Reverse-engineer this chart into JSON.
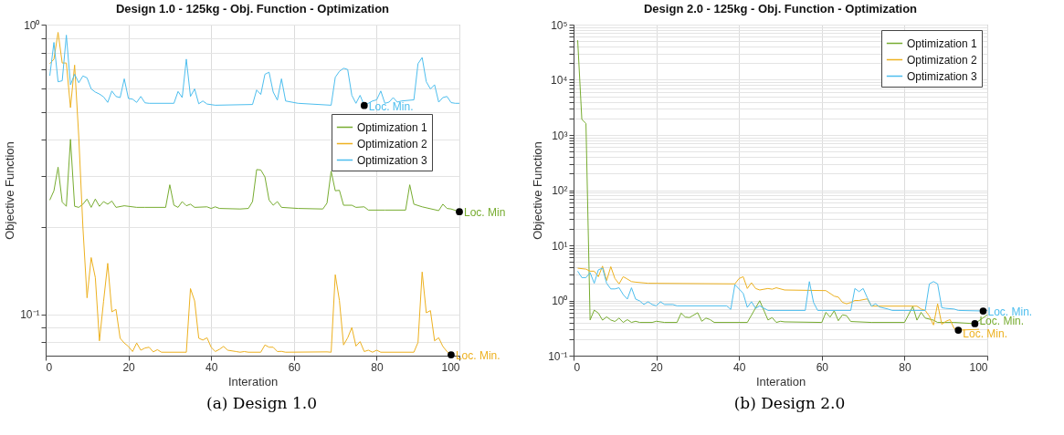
{
  "chart_data": [
    {
      "type": "line",
      "title": "Design 1.0 - 125kg - Obj. Function - Optimization",
      "xlabel": "Interation",
      "ylabel": "Objective Function",
      "xlim": [
        0,
        100
      ],
      "xticks": [
        0,
        20,
        40,
        60,
        80,
        100
      ],
      "ylim": [
        0.072,
        1
      ],
      "log": true,
      "yticks": [
        {
          "value": 0.08,
          "label": null
        },
        {
          "value": 0.09,
          "label": null
        },
        {
          "value": 0.1,
          "label": "10⁻¹"
        },
        {
          "value": 0.2,
          "label": null
        },
        {
          "value": 0.3,
          "label": null
        },
        {
          "value": 0.4,
          "label": null
        },
        {
          "value": 0.5,
          "label": null
        },
        {
          "value": 0.6,
          "label": null
        },
        {
          "value": 0.7,
          "label": null
        },
        {
          "value": 0.8,
          "label": null
        },
        {
          "value": 0.9,
          "label": null
        },
        {
          "value": 1,
          "label": "10⁰"
        }
      ],
      "grid": true,
      "legend": "right",
      "series": [
        {
          "name": "Optimization 1",
          "color": "#77ac30",
          "x": [
            1,
            2,
            3,
            4,
            5,
            6,
            7,
            8,
            9,
            10,
            11,
            12,
            13,
            14,
            15,
            16,
            17,
            19,
            22,
            24,
            29,
            30,
            31,
            32,
            33,
            34,
            35,
            36,
            39,
            40,
            41,
            42,
            47,
            49,
            50,
            51,
            52,
            53,
            54,
            55,
            56,
            57,
            61,
            67,
            68,
            69,
            70,
            71,
            72,
            74,
            75,
            77,
            78,
            82,
            87,
            88,
            89,
            91,
            95,
            96,
            97,
            98,
            100
          ],
          "values": [
            0.248,
            0.267,
            0.322,
            0.244,
            0.236,
            0.402,
            0.236,
            0.234,
            0.24,
            0.25,
            0.234,
            0.25,
            0.236,
            0.245,
            0.24,
            0.246,
            0.234,
            0.237,
            0.234,
            0.234,
            0.234,
            0.28,
            0.238,
            0.234,
            0.245,
            0.237,
            0.24,
            0.234,
            0.235,
            0.232,
            0.235,
            0.232,
            0.231,
            0.232,
            0.245,
            0.316,
            0.315,
            0.298,
            0.248,
            0.238,
            0.245,
            0.234,
            0.232,
            0.231,
            0.242,
            0.312,
            0.267,
            0.268,
            0.238,
            0.238,
            0.234,
            0.235,
            0.229,
            0.229,
            0.229,
            0.28,
            0.24,
            0.235,
            0.228,
            0.24,
            0.232,
            0.231,
            0.226
          ]
        },
        {
          "name": "Optimization 2",
          "color": "#edb120",
          "x": [
            1,
            2,
            3,
            4,
            5,
            6,
            7,
            8,
            9,
            10,
            11,
            12,
            13,
            14,
            15,
            16,
            17,
            18,
            19,
            20,
            21,
            22,
            23,
            24,
            25,
            26,
            27,
            28,
            34,
            35,
            36,
            37,
            38,
            39,
            40,
            41,
            42,
            43,
            44,
            46,
            47,
            48,
            49,
            52,
            53,
            54,
            55,
            56,
            57,
            58,
            68,
            69,
            70,
            71,
            72,
            73,
            74,
            75,
            76,
            77,
            78,
            79,
            80,
            81,
            89,
            90,
            91,
            92,
            93,
            94,
            95,
            96,
            97,
            98
          ],
          "values": [
            0.733,
            0.76,
            0.94,
            0.737,
            0.737,
            0.517,
            0.725,
            0.41,
            0.2,
            0.114,
            0.157,
            0.134,
            0.081,
            0.111,
            0.15,
            0.102,
            0.104,
            0.0827,
            0.0796,
            0.0775,
            0.0744,
            0.0796,
            0.0752,
            0.0765,
            0.077,
            0.0742,
            0.0755,
            0.074,
            0.074,
            0.1227,
            0.1113,
            0.0827,
            0.0815,
            0.083,
            0.077,
            0.0744,
            0.0757,
            0.0775,
            0.0752,
            0.0744,
            0.074,
            0.0744,
            0.074,
            0.074,
            0.0784,
            0.077,
            0.077,
            0.0744,
            0.0745,
            0.074,
            0.0742,
            0.074,
            0.137,
            0.1116,
            0.0784,
            0.083,
            0.09,
            0.0777,
            0.0805,
            0.0744,
            0.0752,
            0.074,
            0.0752,
            0.074,
            0.074,
            0.08,
            0.14,
            0.1012,
            0.103,
            0.081,
            0.083,
            0.0775,
            0.0744,
            0.0725
          ]
        },
        {
          "name": "Optimization 3",
          "color": "#4dbeee",
          "x": [
            1,
            2,
            3,
            4,
            5,
            6,
            7,
            8,
            9,
            10,
            11,
            12,
            13,
            14,
            15,
            16,
            17,
            18,
            19,
            20,
            21,
            22,
            23,
            24,
            25,
            31,
            32,
            33,
            34,
            35,
            36,
            37,
            38,
            39,
            41,
            50,
            51,
            52,
            53,
            54,
            55,
            56,
            57,
            58,
            61,
            69,
            70,
            71,
            72,
            73,
            74,
            75,
            76,
            77,
            78,
            79,
            80,
            81,
            82,
            83,
            84,
            85,
            86,
            89,
            90,
            91,
            92,
            93,
            94,
            95,
            96,
            97,
            98,
            99,
            100
          ],
          "values": [
            0.666,
            0.868,
            0.635,
            0.64,
            0.92,
            0.62,
            0.674,
            0.63,
            0.665,
            0.655,
            0.6,
            0.585,
            0.576,
            0.563,
            0.539,
            0.59,
            0.565,
            0.56,
            0.65,
            0.556,
            0.553,
            0.539,
            0.565,
            0.537,
            0.535,
            0.535,
            0.588,
            0.56,
            0.76,
            0.565,
            0.6,
            0.533,
            0.545,
            0.532,
            0.527,
            0.53,
            0.595,
            0.574,
            0.674,
            0.685,
            0.585,
            0.549,
            0.65,
            0.545,
            0.535,
            0.527,
            0.658,
            0.69,
            0.707,
            0.7,
            0.57,
            0.535,
            0.57,
            0.526,
            0.535,
            0.545,
            0.55,
            0.59,
            0.535,
            0.54,
            0.56,
            0.54,
            0.545,
            0.55,
            0.733,
            0.77,
            0.635,
            0.6,
            0.62,
            0.54,
            0.56,
            0.565,
            0.538,
            0.535,
            0.535
          ]
        }
      ],
      "annotations": [
        {
          "text": "Loc. Min.",
          "x": 77,
          "y": 0.526
        },
        {
          "text": "Loc. Min",
          "x": 100,
          "y": 0.226
        },
        {
          "text": "Loc. Min.",
          "x": 98,
          "y": 0.0725
        },
        "(a) Design 1.0"
      ]
    },
    {
      "type": "line",
      "title": "Design 2.0 - 125kg - Obj. Function - Optimization",
      "xlabel": "Interation",
      "ylabel": "Objective Function",
      "xlim": [
        0,
        100
      ],
      "xticks": [
        0,
        20,
        40,
        60,
        80,
        100
      ],
      "ylim": [
        0.1,
        100000
      ],
      "log": true,
      "yticks": [
        {
          "value": 0.1,
          "label": "10⁻¹"
        },
        {
          "value": 0.2,
          "label": null
        },
        {
          "value": 0.3,
          "label": null
        },
        {
          "value": 0.4,
          "label": null
        },
        {
          "value": 0.5,
          "label": null
        },
        {
          "value": 0.6,
          "label": null
        },
        {
          "value": 0.7,
          "label": null
        },
        {
          "value": 0.8,
          "label": null
        },
        {
          "value": 0.9,
          "label": null
        },
        {
          "value": 1,
          "label": "10⁰"
        },
        {
          "value": 2,
          "label": null
        },
        {
          "value": 3,
          "label": null
        },
        {
          "value": 4,
          "label": null
        },
        {
          "value": 5,
          "label": null
        },
        {
          "value": 6,
          "label": null
        },
        {
          "value": 7,
          "label": null
        },
        {
          "value": 8,
          "label": null
        },
        {
          "value": 9,
          "label": null
        },
        {
          "value": 10,
          "label": "10¹"
        },
        {
          "value": 20,
          "label": null
        },
        {
          "value": 30,
          "label": null
        },
        {
          "value": 40,
          "label": null
        },
        {
          "value": 50,
          "label": null
        },
        {
          "value": 60,
          "label": null
        },
        {
          "value": 70,
          "label": null
        },
        {
          "value": 80,
          "label": null
        },
        {
          "value": 90,
          "label": null
        },
        {
          "value": 100,
          "label": "10²"
        },
        {
          "value": 200,
          "label": null
        },
        {
          "value": 300,
          "label": null
        },
        {
          "value": 400,
          "label": null
        },
        {
          "value": 500,
          "label": null
        },
        {
          "value": 600,
          "label": null
        },
        {
          "value": 700,
          "label": null
        },
        {
          "value": 800,
          "label": null
        },
        {
          "value": 900,
          "label": null
        },
        {
          "value": 1000,
          "label": "10³"
        },
        {
          "value": 2000,
          "label": null
        },
        {
          "value": 3000,
          "label": null
        },
        {
          "value": 4000,
          "label": null
        },
        {
          "value": 5000,
          "label": null
        },
        {
          "value": 6000,
          "label": null
        },
        {
          "value": 7000,
          "label": null
        },
        {
          "value": 8000,
          "label": null
        },
        {
          "value": 9000,
          "label": null
        },
        {
          "value": 10000,
          "label": "10⁴"
        },
        {
          "value": 20000,
          "label": null
        },
        {
          "value": 30000,
          "label": null
        },
        {
          "value": 40000,
          "label": null
        },
        {
          "value": 50000,
          "label": null
        },
        {
          "value": 60000,
          "label": null
        },
        {
          "value": 70000,
          "label": null
        },
        {
          "value": 80000,
          "label": null
        },
        {
          "value": 90000,
          "label": null
        },
        {
          "value": 100000,
          "label": "10⁵"
        }
      ],
      "grid": true,
      "legend": "top right",
      "series": [
        {
          "name": "Optimization 1",
          "color": "#77ac30",
          "x": [
            1,
            2,
            3,
            4,
            5,
            6,
            7,
            8,
            9,
            10,
            11,
            12,
            13,
            14,
            15,
            16,
            19,
            20,
            22,
            25,
            26,
            27,
            28,
            30,
            31,
            32,
            33,
            34,
            42,
            45,
            47,
            48,
            49,
            50,
            51,
            60,
            61,
            62,
            63,
            64,
            65,
            66,
            67,
            72,
            80,
            82,
            83,
            84,
            85,
            87,
            88,
            92,
            97,
            100
          ],
          "values": [
            52000,
            1920,
            1620,
            0.443,
            0.67,
            0.59,
            0.44,
            0.505,
            0.443,
            0.416,
            0.48,
            0.4,
            0.45,
            0.4,
            0.42,
            0.4,
            0.4,
            0.42,
            0.4,
            0.4,
            0.59,
            0.5,
            0.49,
            0.6,
            0.42,
            0.48,
            0.45,
            0.4,
            0.4,
            0.99,
            0.443,
            0.49,
            0.4,
            0.42,
            0.41,
            0.4,
            0.61,
            0.5,
            0.65,
            0.43,
            0.55,
            0.53,
            0.416,
            0.4,
            0.4,
            0.78,
            0.44,
            0.61,
            0.48,
            0.44,
            0.4,
            0.4,
            0.38,
            0.55
          ]
        },
        {
          "name": "Optimization 2",
          "color": "#edb120",
          "x": [
            1,
            3,
            4,
            5,
            6,
            7,
            8,
            9,
            10,
            11,
            12,
            13,
            14,
            15,
            18,
            39,
            40,
            41,
            42,
            43,
            44,
            45,
            47,
            48,
            49,
            51,
            61,
            63,
            64,
            65,
            66,
            67,
            68,
            69,
            71,
            72,
            83,
            84,
            85,
            86,
            87,
            88,
            89,
            90,
            91,
            92,
            93,
            98
          ],
          "values": [
            3.85,
            3.7,
            3.4,
            3.4,
            2.7,
            4.2,
            2.3,
            4.1,
            2.5,
            2.0,
            2.7,
            2.45,
            2.2,
            2.15,
            2.05,
            2.0,
            2.5,
            2.7,
            1.65,
            2.1,
            1.65,
            1.55,
            1.65,
            1.6,
            1.7,
            1.55,
            1.51,
            1.2,
            1.15,
            0.925,
            0.87,
            0.92,
            1.0,
            1.0,
            1.07,
            0.79,
            0.79,
            0.7,
            0.66,
            0.52,
            0.36,
            0.87,
            0.37,
            0.42,
            0.45,
            0.31,
            0.29,
            0.3
          ]
        },
        {
          "name": "Optimization 3",
          "color": "#4dbeee",
          "x": [
            1,
            2,
            3,
            4,
            5,
            6,
            7,
            8,
            9,
            10,
            11,
            12,
            13,
            14,
            15,
            16,
            17,
            18,
            19,
            20,
            21,
            22,
            24,
            25,
            37,
            38,
            39,
            41,
            42,
            43,
            44,
            45,
            47,
            56,
            57,
            58,
            59,
            67,
            68,
            69,
            70,
            71,
            72,
            73,
            74,
            76,
            77,
            85,
            86,
            87,
            88,
            89,
            90,
            92,
            93,
            99,
            100
          ],
          "values": [
            3.4,
            2.6,
            2.6,
            3.2,
            2.05,
            3.6,
            3.85,
            2.05,
            1.62,
            1.62,
            1.7,
            1.28,
            1.06,
            1.7,
            1.06,
            0.98,
            0.845,
            0.95,
            0.845,
            0.8,
            0.95,
            0.845,
            0.845,
            0.8,
            0.8,
            0.69,
            1.94,
            1.35,
            0.75,
            0.95,
            0.72,
            0.8,
            0.66,
            0.66,
            2.2,
            0.925,
            0.66,
            0.66,
            1.65,
            1.45,
            1.65,
            1.12,
            0.79,
            0.87,
            0.76,
            0.7,
            0.66,
            0.66,
            2.0,
            2.2,
            2.0,
            0.74,
            0.72,
            0.7,
            0.66,
            0.645,
            0.66
          ]
        }
      ],
      "annotations": [
        {
          "text": "Loc. Min.",
          "x": 99,
          "y": 0.645
        },
        {
          "text": "Loc. Min.",
          "x": 97,
          "y": 0.38
        },
        {
          "text": "Loc. Min.",
          "x": 93,
          "y": 0.29
        },
        "(b) Design 2.0"
      ]
    }
  ]
}
